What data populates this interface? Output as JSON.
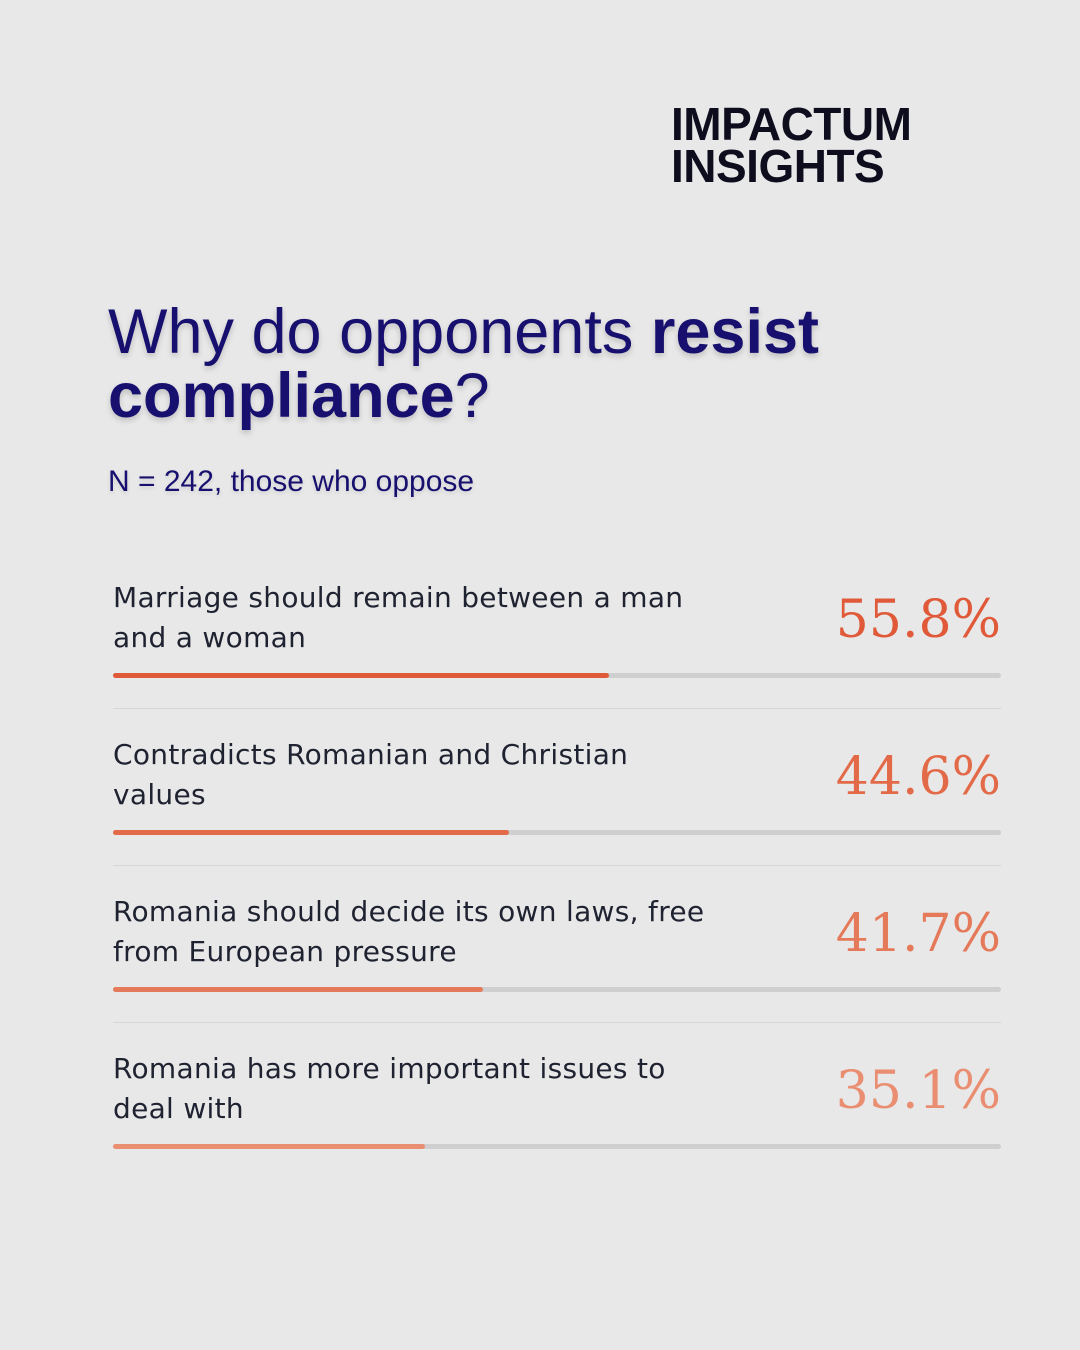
{
  "brand": {
    "line1": "IMPACTUM",
    "line2": "INSIGHTS"
  },
  "title": {
    "part1": "Why do opponents ",
    "part1_bold": "resist",
    "part2_bold": "compliance",
    "part2": "?"
  },
  "subtitle": "N = 242, those who oppose",
  "chart_data": {
    "type": "bar",
    "orientation": "horizontal",
    "title": "Why do opponents resist compliance?",
    "subtitle": "N = 242, those who oppose",
    "categories": [
      "Marriage should remain between a man and a woman",
      "Contradicts Romanian and Christian values",
      "Romania should decide its own laws, free from European pressure",
      "Romania has more important issues to deal with"
    ],
    "values": [
      55.8,
      44.6,
      41.7,
      35.1
    ],
    "value_labels": [
      "55.8%",
      "44.6%",
      "41.7%",
      "35.1%"
    ],
    "xlim": [
      0,
      100
    ],
    "unit": "%",
    "colors": [
      "#e05a3a",
      "#e36a48",
      "#e57a5a",
      "#ea8e72"
    ],
    "track_color": "#cfcfcf",
    "grid": false,
    "legend": "none"
  }
}
